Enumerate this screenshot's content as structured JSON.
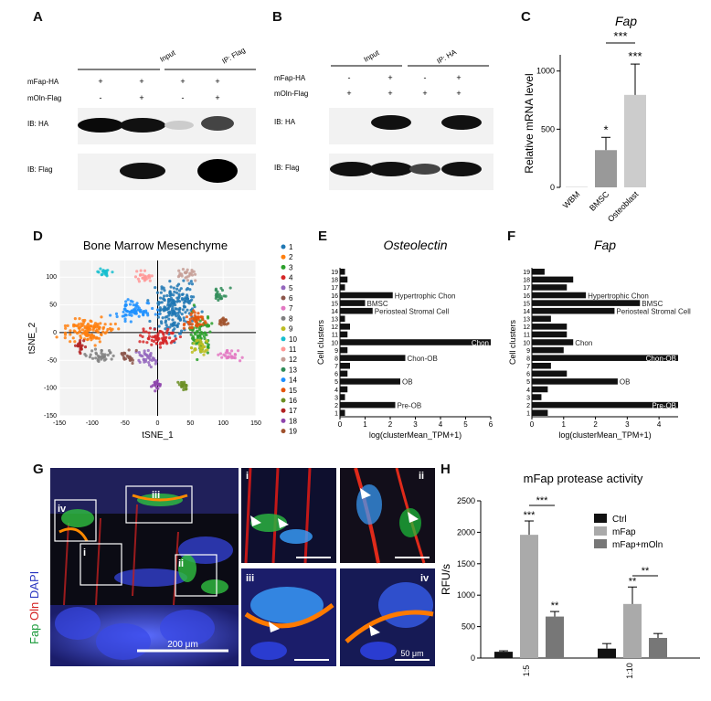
{
  "panels": {
    "A": {
      "letter": "A",
      "header": {
        "input": "Input",
        "ip": "IP: Flag"
      },
      "rows": [
        {
          "label": "mFap-HA",
          "marks": [
            "+",
            "+",
            "+",
            "+"
          ]
        },
        {
          "label": "mOln-Flag",
          "marks": [
            "-",
            "+",
            "-",
            "+"
          ]
        }
      ],
      "blots": [
        {
          "label": "IB: HA"
        },
        {
          "label": "IB: Flag"
        }
      ]
    },
    "B": {
      "letter": "B",
      "header": {
        "input": "Input",
        "ip": "IP: HA"
      },
      "rows": [
        {
          "label": "mFap-HA",
          "marks": [
            "-",
            "+",
            "-",
            "+"
          ]
        },
        {
          "label": "mOln-Flag",
          "marks": [
            "+",
            "+",
            "+",
            "+"
          ]
        }
      ],
      "blots": [
        {
          "label": "IB: HA"
        },
        {
          "label": "IB: Flag"
        }
      ]
    },
    "C": {
      "letter": "C",
      "stars_single": "*",
      "stars_triple": "***"
    },
    "D": {
      "letter": "D"
    },
    "E": {
      "letter": "E"
    },
    "F": {
      "letter": "F"
    },
    "G": {
      "letter": "G",
      "stain_fap": "Fap",
      "stain_oln": "Oln",
      "stain_dapi": "DAPI",
      "boxes": [
        "iv",
        "iii",
        "i",
        "ii"
      ],
      "insets": [
        "i",
        "ii",
        "iii",
        "iv"
      ],
      "scale_main": "200 μm",
      "scale_inset": "50 μm"
    },
    "H": {
      "letter": "H",
      "stars_triple": "***",
      "stars_double": "**"
    }
  },
  "chart_data": [
    {
      "id": "C",
      "type": "bar",
      "title": "Fap",
      "ylabel": "Relative mRNA level",
      "categories": [
        "WBM",
        "BMSC",
        "Osteoblast"
      ],
      "values": [
        2,
        320,
        795
      ],
      "errors": [
        0,
        110,
        265
      ],
      "ylim": [
        0,
        1100
      ],
      "yticks": [
        0,
        500,
        1000
      ],
      "colors": [
        "#999999",
        "#999999",
        "#cccccc"
      ],
      "significance": [
        {
          "bar": "BMSC",
          "text": "*"
        },
        {
          "bar": "Osteoblast",
          "text": "***"
        },
        {
          "between": [
            "BMSC",
            "Osteoblast"
          ],
          "text": "***"
        }
      ]
    },
    {
      "id": "D",
      "type": "scatter",
      "title": "Bone Marrow Mesenchyme",
      "xlabel": "tSNE_1",
      "ylabel": "tSNE_2",
      "xlim": [
        -150,
        150
      ],
      "ylim": [
        -150,
        130
      ],
      "xticks": [
        -150,
        -100,
        -50,
        0,
        50,
        100,
        150
      ],
      "yticks": [
        -150,
        -100,
        -50,
        0,
        50,
        100
      ],
      "grid": true,
      "legend_position": "right",
      "clusters": [
        {
          "name": "1",
          "color": "#1f77b4",
          "cx": 30,
          "cy": 45,
          "sx": 22,
          "sy": 30
        },
        {
          "name": "2",
          "color": "#ff7f0e",
          "cx": -105,
          "cy": 5,
          "sx": 28,
          "sy": 14
        },
        {
          "name": "3",
          "color": "#2ca02c",
          "cx": 65,
          "cy": -5,
          "sx": 12,
          "sy": 25
        },
        {
          "name": "4",
          "color": "#d62728",
          "cx": 5,
          "cy": -10,
          "sx": 18,
          "sy": 12
        },
        {
          "name": "5",
          "color": "#9467bd",
          "cx": -15,
          "cy": -45,
          "sx": 12,
          "sy": 10
        },
        {
          "name": "6",
          "color": "#8c564b",
          "cx": -45,
          "cy": -42,
          "sx": 10,
          "sy": 8
        },
        {
          "name": "7",
          "color": "#e377c2",
          "cx": 110,
          "cy": -40,
          "sx": 12,
          "sy": 7
        },
        {
          "name": "8",
          "color": "#7f7f7f",
          "cx": -90,
          "cy": -40,
          "sx": 14,
          "sy": 8
        },
        {
          "name": "9",
          "color": "#bcbd22",
          "cx": 65,
          "cy": -25,
          "sx": 10,
          "sy": 10
        },
        {
          "name": "10",
          "color": "#17becf",
          "cx": -80,
          "cy": 110,
          "sx": 7,
          "sy": 5
        },
        {
          "name": "11",
          "color": "#ff9896",
          "cx": -20,
          "cy": 100,
          "sx": 10,
          "sy": 8
        },
        {
          "name": "12",
          "color": "#c49c94",
          "cx": 45,
          "cy": 105,
          "sx": 10,
          "sy": 8
        },
        {
          "name": "13",
          "color": "#2e8b57",
          "cx": 95,
          "cy": 70,
          "sx": 8,
          "sy": 8
        },
        {
          "name": "14",
          "color": "#1e90ff",
          "cx": -35,
          "cy": 40,
          "sx": 20,
          "sy": 12
        },
        {
          "name": "15",
          "color": "#e6550d",
          "cx": 55,
          "cy": 20,
          "sx": 12,
          "sy": 12
        },
        {
          "name": "16",
          "color": "#6b8e23",
          "cx": 40,
          "cy": -95,
          "sx": 6,
          "sy": 5
        },
        {
          "name": "17",
          "color": "#b22222",
          "cx": -120,
          "cy": -25,
          "sx": 6,
          "sy": 8
        },
        {
          "name": "18",
          "color": "#8e44ad",
          "cx": 0,
          "cy": -95,
          "sx": 6,
          "sy": 5
        },
        {
          "name": "19",
          "color": "#a0522d",
          "cx": 100,
          "cy": 20,
          "sx": 5,
          "sy": 5
        }
      ]
    },
    {
      "id": "E",
      "type": "bar",
      "orientation": "horizontal",
      "title": "Osteolectin",
      "xlabel": "log(clusterMean_TPM+1)",
      "ylabel": "Cell clusters",
      "xlim": [
        0,
        6
      ],
      "xticks": [
        0,
        1,
        2,
        3,
        4,
        5,
        6
      ],
      "categories": [
        "1",
        "2",
        "3",
        "4",
        "5",
        "6",
        "7",
        "8",
        "9",
        "10",
        "11",
        "12",
        "13",
        "14",
        "15",
        "16",
        "17",
        "18",
        "19"
      ],
      "values": [
        0.2,
        2.2,
        0.2,
        0.3,
        2.4,
        0.3,
        0.4,
        2.6,
        0.3,
        6.0,
        0.3,
        0.4,
        0.2,
        1.3,
        1.0,
        2.1,
        0.2,
        0.3,
        0.2
      ],
      "labels": [
        {
          "cluster": "2",
          "text": "Pre-OB"
        },
        {
          "cluster": "5",
          "text": "OB"
        },
        {
          "cluster": "8",
          "text": "Chon-OB"
        },
        {
          "cluster": "10",
          "text": "Chon"
        },
        {
          "cluster": "14",
          "text": "Periosteal Stromal Cell"
        },
        {
          "cluster": "15",
          "text": "BMSC"
        },
        {
          "cluster": "16",
          "text": "Hypertrophic Chon"
        }
      ]
    },
    {
      "id": "F",
      "type": "bar",
      "orientation": "horizontal",
      "title": "Fap",
      "xlabel": "log(clusterMean_TPM+1)",
      "ylabel": "Cell clusters",
      "xlim": [
        0,
        4.6
      ],
      "xticks": [
        0,
        1,
        2,
        3,
        4
      ],
      "categories": [
        "1",
        "2",
        "3",
        "4",
        "5",
        "6",
        "7",
        "8",
        "9",
        "10",
        "11",
        "12",
        "13",
        "14",
        "15",
        "16",
        "17",
        "18",
        "19"
      ],
      "values": [
        0.5,
        4.6,
        0.3,
        0.5,
        2.7,
        1.1,
        0.6,
        4.6,
        1.0,
        1.3,
        1.1,
        1.1,
        0.6,
        2.6,
        3.4,
        1.7,
        1.1,
        1.3,
        0.4
      ],
      "labels": [
        {
          "cluster": "2",
          "text": "Pre-OB"
        },
        {
          "cluster": "5",
          "text": "OB"
        },
        {
          "cluster": "8",
          "text": "Chon-OB"
        },
        {
          "cluster": "10",
          "text": "Chon"
        },
        {
          "cluster": "14",
          "text": "Periosteal Stromal Cell"
        },
        {
          "cluster": "15",
          "text": "BMSC"
        },
        {
          "cluster": "16",
          "text": "Hypertrophic Chon"
        }
      ]
    },
    {
      "id": "H",
      "type": "bar",
      "title": "mFap protease activity",
      "ylabel": "RFU/s",
      "categories": [
        "1:5",
        "1:10"
      ],
      "series": [
        {
          "name": "Ctrl",
          "color": "#111111",
          "values": [
            100,
            150
          ],
          "errors": [
            15,
            80
          ]
        },
        {
          "name": "mFap",
          "color": "#aaaaaa",
          "values": [
            1960,
            860
          ],
          "errors": [
            220,
            270
          ]
        },
        {
          "name": "mFap+mOln",
          "color": "#777777",
          "values": [
            660,
            320
          ],
          "errors": [
            80,
            70
          ]
        }
      ],
      "ylim": [
        0,
        2500
      ],
      "yticks": [
        0,
        500,
        1000,
        1500,
        2000,
        2500
      ],
      "legend_position": "top-right"
    }
  ]
}
